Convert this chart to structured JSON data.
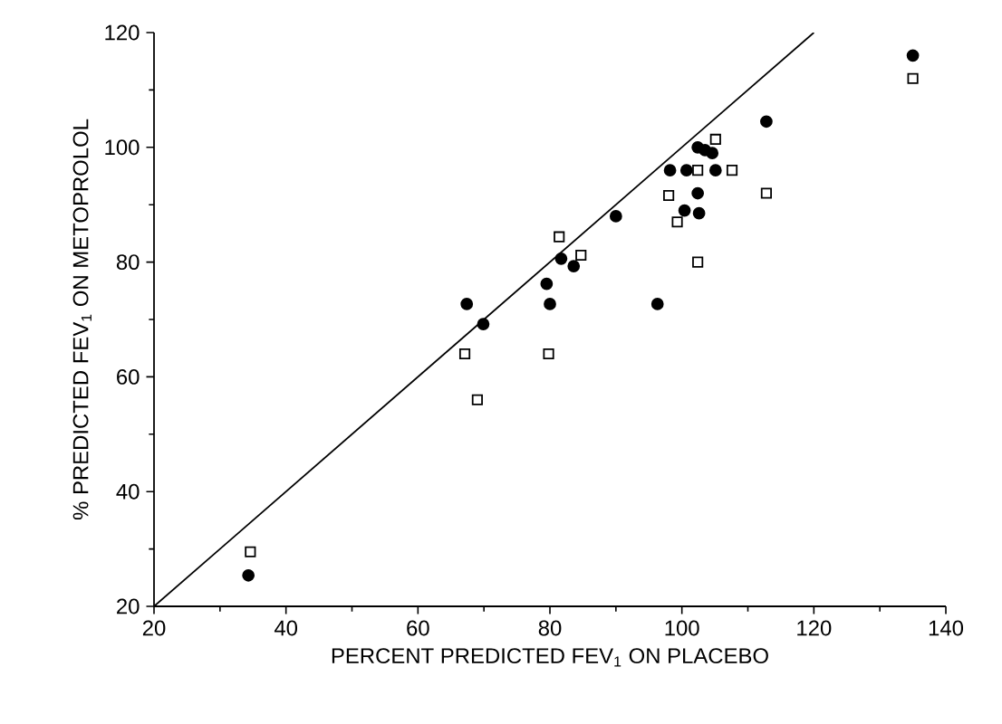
{
  "chart_data": {
    "type": "scatter",
    "xlabel": "PERCENT PREDICTED FEV$_{1}$ ON PLACEBO",
    "ylabel": "% PREDICTED FEV$_{1}$ ON METOPROLOL",
    "xlim": [
      20,
      140
    ],
    "ylim": [
      20,
      120
    ],
    "xticks": [
      20,
      40,
      60,
      80,
      100,
      120,
      140
    ],
    "yticks": [
      20,
      40,
      60,
      80,
      100,
      120
    ],
    "grid": false,
    "series": [
      {
        "type": "scatter",
        "marker": "circle",
        "color": "#000000",
        "x": [
          135,
          112.8,
          102.4,
          103.5,
          104.6,
          98.2,
          100.7,
          105.1,
          102.4,
          100.4,
          102.6,
          96.3,
          90,
          81.7,
          83.6,
          79.5,
          80,
          67.4,
          69.9,
          34.3
        ],
        "values": [
          116,
          104.5,
          100,
          99.5,
          99,
          96,
          96,
          96,
          92,
          89,
          88.5,
          72.7,
          88,
          80.6,
          79.3,
          76.2,
          72.7,
          72.7,
          69.2,
          25.4
        ]
      },
      {
        "type": "scatter",
        "marker": "square",
        "color": "#000000",
        "x": [
          135,
          105.1,
          102.4,
          107.6,
          98,
          112.8,
          99.3,
          102.4,
          81.4,
          84.7,
          67.1,
          69,
          79.8,
          34.6
        ],
        "values": [
          112,
          101.4,
          96,
          96,
          91.6,
          92,
          87,
          80,
          84.4,
          81.2,
          64,
          56,
          64,
          29.5
        ]
      },
      {
        "type": "line",
        "marker": "none",
        "line_style": "solid",
        "color": "#000000",
        "x": [
          20,
          120
        ],
        "values": [
          20,
          120
        ]
      }
    ]
  }
}
